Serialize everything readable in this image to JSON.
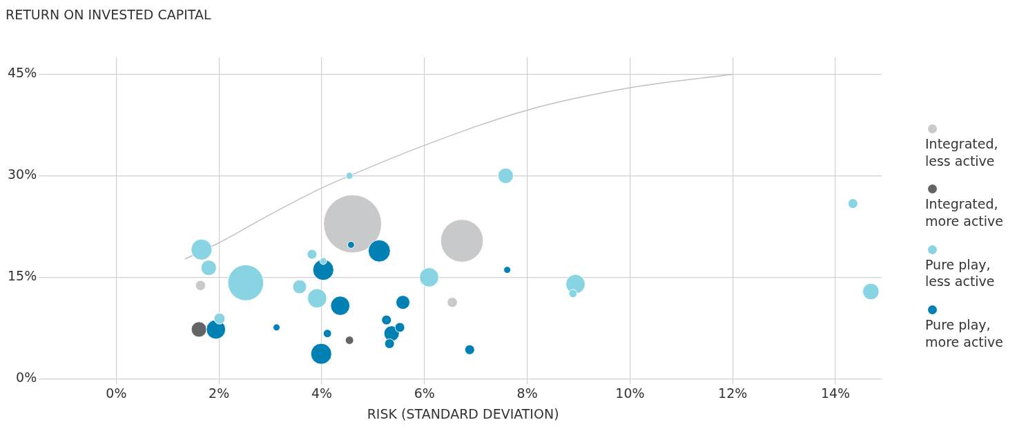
{
  "chart_data": {
    "type": "bubble",
    "ylabel": "RETURN ON INVESTED CAPITAL",
    "xlabel": "RISK (STANDARD DEVIATION)",
    "xlim": [
      -1.4,
      14.9
    ],
    "ylim": [
      0,
      47.5
    ],
    "xticks": [
      {
        "value": 0,
        "label": "0%"
      },
      {
        "value": 2,
        "label": "2%"
      },
      {
        "value": 4,
        "label": "4%"
      },
      {
        "value": 6,
        "label": "6%"
      },
      {
        "value": 8,
        "label": "8%"
      },
      {
        "value": 10,
        "label": "10%"
      },
      {
        "value": 12,
        "label": "12%"
      },
      {
        "value": 14,
        "label": "14%"
      }
    ],
    "yticks": [
      {
        "value": 0,
        "label": "0%"
      },
      {
        "value": 15,
        "label": "15%"
      },
      {
        "value": 30,
        "label": "30%"
      },
      {
        "value": 45,
        "label": "45%"
      }
    ],
    "grid": true,
    "legend": "right",
    "series": [
      {
        "type": "line",
        "color": "#c0c0c0",
        "x": [
          1.34,
          2,
          3,
          4,
          4.54,
          6,
          8,
          10,
          12
        ],
        "values": [
          17.7,
          20.1,
          24.3,
          28.2,
          30.0,
          34.5,
          39.7,
          43.0,
          45.0
        ]
      },
      {
        "name": "Integrated, less active",
        "color": "#c8c9cb",
        "x": [
          4.6,
          6.73,
          1.64,
          6.54
        ],
        "values": [
          22.9,
          20.4,
          13.8,
          11.3
        ],
        "sizes": [
          1,
          0.54,
          0.03,
          0.03
        ]
      },
      {
        "name": "Integrated, more active",
        "color": "#636466",
        "x": [
          1.61,
          4.54
        ],
        "values": [
          7.3,
          5.7
        ],
        "sizes": [
          0.07,
          0.02
        ]
      },
      {
        "name": "Pure play, less active",
        "color": "#88d4e3",
        "x": [
          4.54,
          1.66,
          1.8,
          2.52,
          2.01,
          3.81,
          4.03,
          3.57,
          3.91,
          6.09,
          7.58,
          8.94,
          8.89,
          14.34,
          14.69
        ],
        "values": [
          30.0,
          19.1,
          16.4,
          14.2,
          8.9,
          18.4,
          17.4,
          13.6,
          11.9,
          15.0,
          30.0,
          14.0,
          12.6,
          25.9,
          12.9
        ],
        "sizes": [
          0.014,
          0.13,
          0.07,
          0.38,
          0.036,
          0.028,
          0.014,
          0.057,
          0.11,
          0.11,
          0.07,
          0.11,
          0.02,
          0.028,
          0.08
        ]
      },
      {
        "name": "Pure play, more active",
        "color": "#0080b3",
        "x": [
          4.57,
          4.03,
          5.12,
          4.36,
          5.58,
          1.94,
          3.12,
          4.11,
          3.99,
          5.26,
          5.36,
          5.52,
          5.32,
          6.88,
          7.61
        ],
        "values": [
          19.8,
          16.1,
          18.9,
          10.8,
          11.3,
          7.3,
          7.6,
          6.7,
          3.7,
          8.7,
          6.7,
          7.6,
          5.2,
          4.3,
          16.1
        ],
        "sizes": [
          0.014,
          0.13,
          0.145,
          0.11,
          0.057,
          0.11,
          0.014,
          0.02,
          0.13,
          0.028,
          0.07,
          0.028,
          0.028,
          0.028,
          0.014
        ]
      }
    ]
  }
}
